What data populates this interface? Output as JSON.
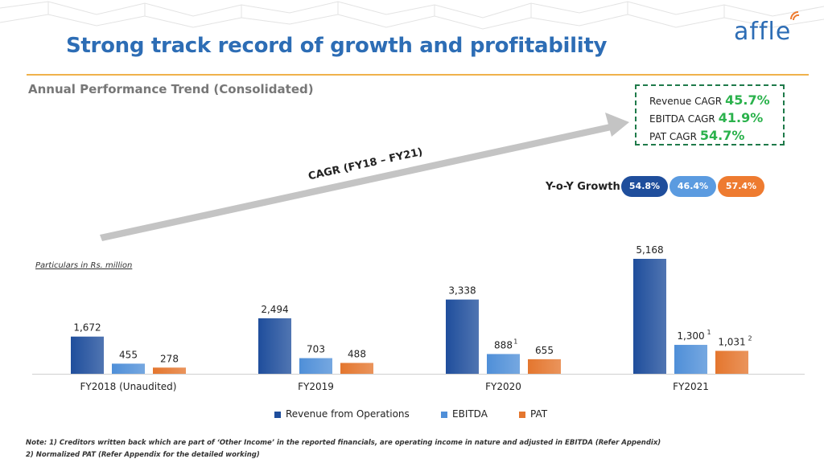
{
  "header": {
    "title": "Strong track record of growth and profitability",
    "logo_text": "affle",
    "subtitle": "Annual Performance Trend (Consolidated)"
  },
  "cagr": {
    "arrow_label": "CAGR (FY18 – FY21)",
    "items": [
      {
        "label": "Revenue CAGR",
        "value": "45.7%"
      },
      {
        "label": "EBITDA CAGR",
        "value": "41.9%"
      },
      {
        "label": "PAT CAGR",
        "value": "54.7%"
      }
    ]
  },
  "yoy": {
    "label": "Y-o-Y Growth",
    "pills": [
      {
        "value": "54.8%",
        "color": "#1f4e9c"
      },
      {
        "value": "46.4%",
        "color": "#5b9be0"
      },
      {
        "value": "57.4%",
        "color": "#ee7b30"
      }
    ]
  },
  "particulars": "Particulars in Rs. million",
  "chart_data": {
    "type": "bar",
    "categories": [
      "FY2018 (Unaudited)",
      "FY2019",
      "FY2020",
      "FY2021"
    ],
    "series": [
      {
        "name": "Revenue from Operations",
        "values": [
          1672,
          2494,
          3338,
          5168
        ],
        "labels": [
          "1,672",
          "2,494",
          "3,338",
          "5,168"
        ],
        "footnotes": [
          "",
          "",
          "",
          ""
        ],
        "color": "#1f4e9c"
      },
      {
        "name": "EBITDA",
        "values": [
          455,
          703,
          888,
          1300
        ],
        "labels": [
          "455",
          "703",
          "888",
          "1,300"
        ],
        "footnotes": [
          "",
          "",
          "1",
          "1"
        ],
        "color": "#4f8fd8"
      },
      {
        "name": "PAT",
        "values": [
          278,
          488,
          655,
          1031
        ],
        "labels": [
          "278",
          "488",
          "655",
          "1,031"
        ],
        "footnotes": [
          "",
          "",
          "",
          "2"
        ],
        "color": "#e4762e"
      }
    ],
    "ylim": [
      0,
      5168
    ]
  },
  "notes": [
    "Note: 1) Creditors written back which are part of ‘Other Income’ in the reported financials, are operating income in nature and adjusted in EBITDA (Refer Appendix)",
    "2) Normalized PAT (Refer Appendix for the detailed working)"
  ]
}
